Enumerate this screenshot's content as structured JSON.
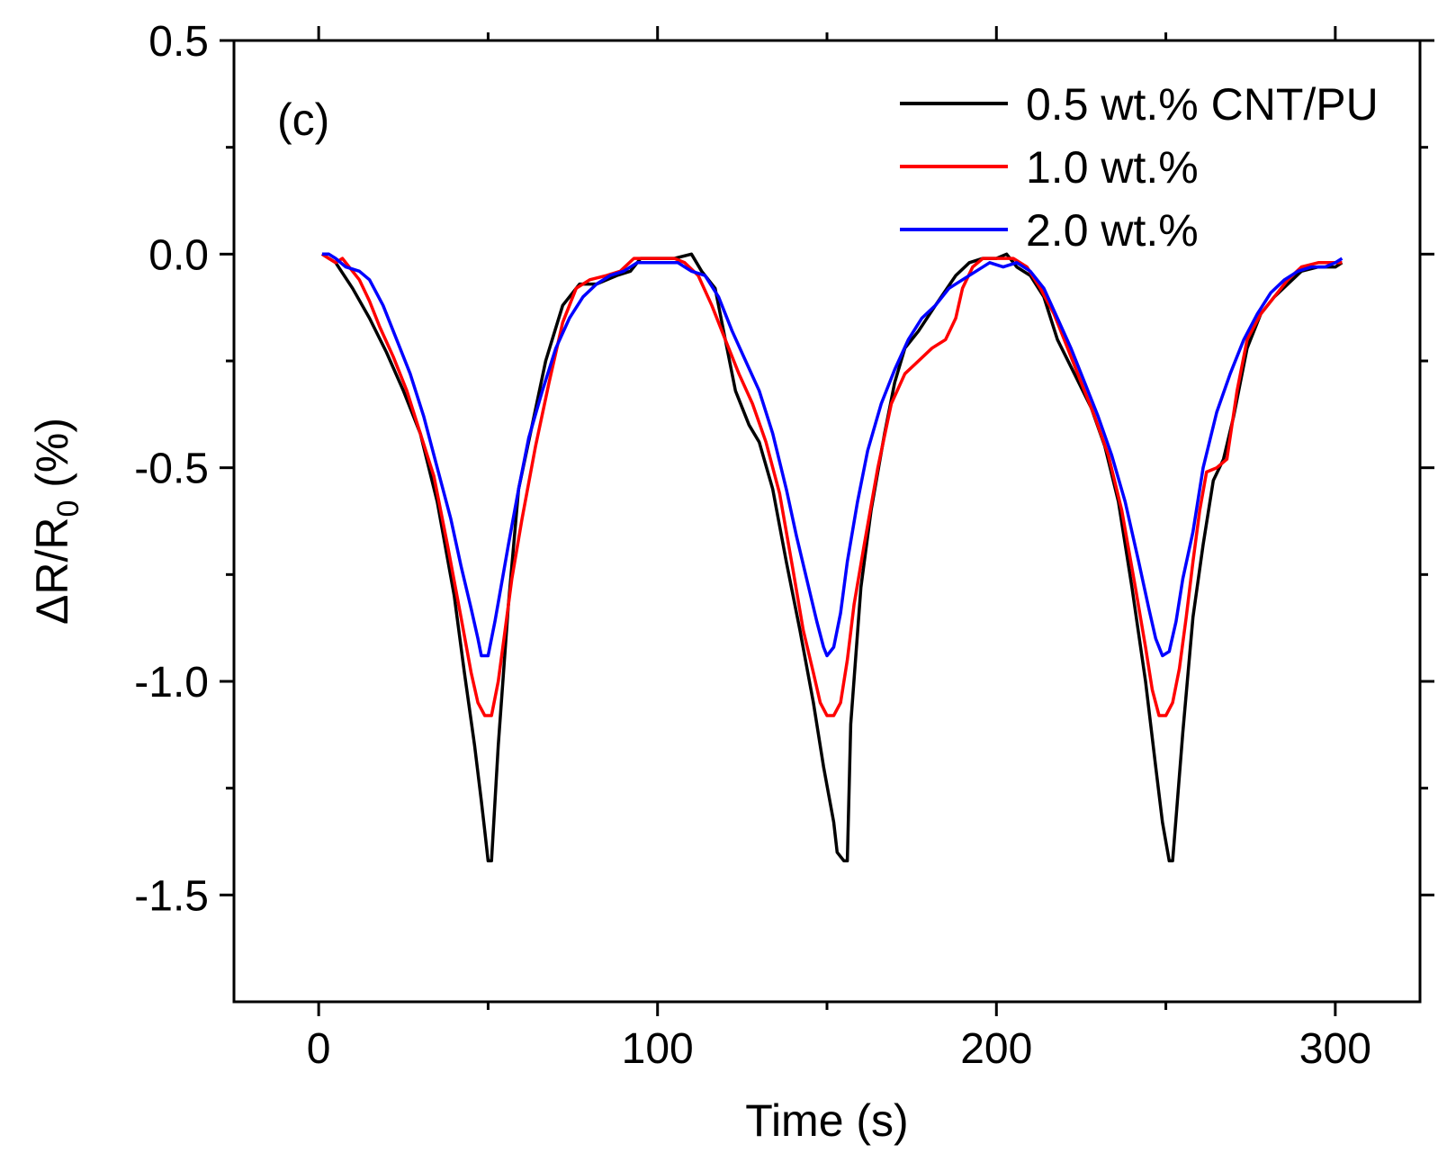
{
  "chart_data": {
    "type": "line",
    "panel_label": "(c)",
    "xlabel": "Time (s)",
    "ylabel_main": "ΔR/R",
    "ylabel_sub": "0",
    "ylabel_tail": " (%)",
    "xlim": [
      -25,
      325
    ],
    "ylim": [
      -1.75,
      0.5
    ],
    "xticks": [
      0,
      100,
      200,
      300
    ],
    "xtick_labels": [
      "0",
      "100",
      "200",
      "300"
    ],
    "yticks": [
      0.5,
      0.0,
      -0.5,
      -1.0,
      -1.5
    ],
    "ytick_labels": [
      "0.5",
      "0.0",
      "-0.5",
      "-1.0",
      "-1.5"
    ],
    "x_minor_ticks": [
      50,
      150,
      250
    ],
    "y_minor_ticks": [
      0.25,
      -0.25,
      -0.75,
      -1.25
    ],
    "grid": false,
    "legend_position": "top-right",
    "series": [
      {
        "name": "0.5 wt.% CNT/PU",
        "color": "#000000",
        "points": [
          [
            1,
            0
          ],
          [
            5,
            -0.02
          ],
          [
            10,
            -0.08
          ],
          [
            15,
            -0.15
          ],
          [
            20,
            -0.23
          ],
          [
            25,
            -0.32
          ],
          [
            30,
            -0.42
          ],
          [
            35,
            -0.58
          ],
          [
            40,
            -0.8
          ],
          [
            43,
            -0.98
          ],
          [
            46,
            -1.15
          ],
          [
            48,
            -1.28
          ],
          [
            49,
            -1.35
          ],
          [
            50,
            -1.42
          ],
          [
            51,
            -1.42
          ],
          [
            53,
            -1.15
          ],
          [
            56,
            -0.82
          ],
          [
            59,
            -0.55
          ],
          [
            63,
            -0.4
          ],
          [
            67,
            -0.25
          ],
          [
            72,
            -0.12
          ],
          [
            77,
            -0.07
          ],
          [
            82,
            -0.07
          ],
          [
            88,
            -0.05
          ],
          [
            92,
            -0.04
          ],
          [
            95,
            -0.01
          ],
          [
            100,
            -0.01
          ],
          [
            105,
            -0.01
          ],
          [
            110,
            0
          ],
          [
            113,
            -0.04
          ],
          [
            117,
            -0.08
          ],
          [
            120,
            -0.2
          ],
          [
            123,
            -0.32
          ],
          [
            127,
            -0.4
          ],
          [
            130,
            -0.44
          ],
          [
            134,
            -0.55
          ],
          [
            138,
            -0.72
          ],
          [
            142,
            -0.88
          ],
          [
            146,
            -1.05
          ],
          [
            149,
            -1.2
          ],
          [
            152,
            -1.33
          ],
          [
            153,
            -1.4
          ],
          [
            155,
            -1.42
          ],
          [
            156,
            -1.42
          ],
          [
            157,
            -1.1
          ],
          [
            160,
            -0.78
          ],
          [
            163,
            -0.6
          ],
          [
            167,
            -0.42
          ],
          [
            170,
            -0.3
          ],
          [
            173,
            -0.22
          ],
          [
            177,
            -0.18
          ],
          [
            182,
            -0.12
          ],
          [
            188,
            -0.05
          ],
          [
            192,
            -0.02
          ],
          [
            196,
            -0.01
          ],
          [
            200,
            -0.01
          ],
          [
            203,
            0
          ],
          [
            206,
            -0.03
          ],
          [
            210,
            -0.05
          ],
          [
            214,
            -0.1
          ],
          [
            218,
            -0.2
          ],
          [
            223,
            -0.28
          ],
          [
            228,
            -0.36
          ],
          [
            232,
            -0.45
          ],
          [
            236,
            -0.58
          ],
          [
            240,
            -0.78
          ],
          [
            244,
            -1.0
          ],
          [
            247,
            -1.2
          ],
          [
            249,
            -1.33
          ],
          [
            251,
            -1.42
          ],
          [
            252,
            -1.42
          ],
          [
            253,
            -1.32
          ],
          [
            255,
            -1.12
          ],
          [
            258,
            -0.85
          ],
          [
            261,
            -0.68
          ],
          [
            264,
            -0.53
          ],
          [
            267,
            -0.48
          ],
          [
            270,
            -0.38
          ],
          [
            274,
            -0.22
          ],
          [
            278,
            -0.14
          ],
          [
            282,
            -0.1
          ],
          [
            286,
            -0.07
          ],
          [
            290,
            -0.04
          ],
          [
            295,
            -0.03
          ],
          [
            300,
            -0.03
          ],
          [
            302,
            -0.02
          ]
        ]
      },
      {
        "name": "1.0 wt.%",
        "color": "#ff0000",
        "points": [
          [
            1,
            0
          ],
          [
            3,
            -0.01
          ],
          [
            5,
            -0.02
          ],
          [
            7,
            -0.01
          ],
          [
            9,
            -0.03
          ],
          [
            12,
            -0.06
          ],
          [
            15,
            -0.11
          ],
          [
            18,
            -0.17
          ],
          [
            22,
            -0.24
          ],
          [
            26,
            -0.32
          ],
          [
            30,
            -0.42
          ],
          [
            34,
            -0.52
          ],
          [
            38,
            -0.68
          ],
          [
            42,
            -0.85
          ],
          [
            45,
            -0.98
          ],
          [
            47,
            -1.05
          ],
          [
            49,
            -1.08
          ],
          [
            51,
            -1.08
          ],
          [
            53,
            -1.0
          ],
          [
            55,
            -0.88
          ],
          [
            57,
            -0.76
          ],
          [
            60,
            -0.62
          ],
          [
            64,
            -0.45
          ],
          [
            68,
            -0.3
          ],
          [
            72,
            -0.16
          ],
          [
            76,
            -0.08
          ],
          [
            80,
            -0.06
          ],
          [
            85,
            -0.05
          ],
          [
            89,
            -0.04
          ],
          [
            93,
            -0.01
          ],
          [
            100,
            -0.01
          ],
          [
            105,
            -0.01
          ],
          [
            108,
            -0.02
          ],
          [
            112,
            -0.05
          ],
          [
            116,
            -0.12
          ],
          [
            120,
            -0.2
          ],
          [
            124,
            -0.28
          ],
          [
            128,
            -0.35
          ],
          [
            132,
            -0.44
          ],
          [
            136,
            -0.56
          ],
          [
            140,
            -0.74
          ],
          [
            143,
            -0.88
          ],
          [
            146,
            -0.98
          ],
          [
            148,
            -1.05
          ],
          [
            150,
            -1.08
          ],
          [
            152,
            -1.08
          ],
          [
            154,
            -1.05
          ],
          [
            156,
            -0.95
          ],
          [
            158,
            -0.82
          ],
          [
            161,
            -0.68
          ],
          [
            165,
            -0.5
          ],
          [
            169,
            -0.35
          ],
          [
            173,
            -0.28
          ],
          [
            177,
            -0.25
          ],
          [
            181,
            -0.22
          ],
          [
            185,
            -0.2
          ],
          [
            188,
            -0.15
          ],
          [
            190,
            -0.08
          ],
          [
            193,
            -0.03
          ],
          [
            196,
            -0.01
          ],
          [
            200,
            -0.01
          ],
          [
            205,
            -0.01
          ],
          [
            209,
            -0.03
          ],
          [
            213,
            -0.08
          ],
          [
            217,
            -0.14
          ],
          [
            221,
            -0.22
          ],
          [
            225,
            -0.3
          ],
          [
            229,
            -0.38
          ],
          [
            233,
            -0.47
          ],
          [
            237,
            -0.6
          ],
          [
            241,
            -0.78
          ],
          [
            244,
            -0.92
          ],
          [
            246,
            -1.02
          ],
          [
            248,
            -1.08
          ],
          [
            250,
            -1.08
          ],
          [
            252,
            -1.05
          ],
          [
            254,
            -0.97
          ],
          [
            256,
            -0.85
          ],
          [
            258,
            -0.72
          ],
          [
            260,
            -0.6
          ],
          [
            262,
            -0.51
          ],
          [
            265,
            -0.5
          ],
          [
            268,
            -0.48
          ],
          [
            271,
            -0.32
          ],
          [
            274,
            -0.2
          ],
          [
            278,
            -0.14
          ],
          [
            282,
            -0.1
          ],
          [
            286,
            -0.06
          ],
          [
            290,
            -0.03
          ],
          [
            295,
            -0.02
          ],
          [
            300,
            -0.02
          ],
          [
            302,
            -0.02
          ]
        ]
      },
      {
        "name": "2.0 wt.%",
        "color": "#0000ff",
        "points": [
          [
            1,
            0
          ],
          [
            3,
            0
          ],
          [
            5,
            -0.01
          ],
          [
            8,
            -0.03
          ],
          [
            12,
            -0.04
          ],
          [
            15,
            -0.06
          ],
          [
            19,
            -0.12
          ],
          [
            23,
            -0.2
          ],
          [
            27,
            -0.28
          ],
          [
            31,
            -0.38
          ],
          [
            35,
            -0.5
          ],
          [
            39,
            -0.62
          ],
          [
            42,
            -0.73
          ],
          [
            45,
            -0.83
          ],
          [
            47,
            -0.9
          ],
          [
            48,
            -0.94
          ],
          [
            50,
            -0.94
          ],
          [
            52,
            -0.86
          ],
          [
            54,
            -0.77
          ],
          [
            56,
            -0.68
          ],
          [
            59,
            -0.55
          ],
          [
            62,
            -0.43
          ],
          [
            66,
            -0.32
          ],
          [
            70,
            -0.22
          ],
          [
            74,
            -0.15
          ],
          [
            78,
            -0.1
          ],
          [
            82,
            -0.07
          ],
          [
            86,
            -0.05
          ],
          [
            90,
            -0.04
          ],
          [
            94,
            -0.02
          ],
          [
            98,
            -0.02
          ],
          [
            102,
            -0.02
          ],
          [
            106,
            -0.02
          ],
          [
            110,
            -0.04
          ],
          [
            114,
            -0.05
          ],
          [
            118,
            -0.1
          ],
          [
            122,
            -0.18
          ],
          [
            126,
            -0.25
          ],
          [
            130,
            -0.32
          ],
          [
            134,
            -0.42
          ],
          [
            138,
            -0.55
          ],
          [
            141,
            -0.66
          ],
          [
            144,
            -0.76
          ],
          [
            147,
            -0.86
          ],
          [
            149,
            -0.92
          ],
          [
            150,
            -0.94
          ],
          [
            152,
            -0.92
          ],
          [
            154,
            -0.84
          ],
          [
            156,
            -0.72
          ],
          [
            159,
            -0.58
          ],
          [
            162,
            -0.46
          ],
          [
            166,
            -0.35
          ],
          [
            170,
            -0.27
          ],
          [
            174,
            -0.2
          ],
          [
            178,
            -0.15
          ],
          [
            182,
            -0.12
          ],
          [
            186,
            -0.08
          ],
          [
            190,
            -0.06
          ],
          [
            194,
            -0.04
          ],
          [
            198,
            -0.02
          ],
          [
            202,
            -0.03
          ],
          [
            206,
            -0.02
          ],
          [
            210,
            -0.04
          ],
          [
            214,
            -0.08
          ],
          [
            218,
            -0.15
          ],
          [
            222,
            -0.22
          ],
          [
            226,
            -0.3
          ],
          [
            230,
            -0.38
          ],
          [
            234,
            -0.47
          ],
          [
            238,
            -0.58
          ],
          [
            242,
            -0.72
          ],
          [
            245,
            -0.83
          ],
          [
            247,
            -0.9
          ],
          [
            249,
            -0.94
          ],
          [
            251,
            -0.93
          ],
          [
            253,
            -0.86
          ],
          [
            255,
            -0.76
          ],
          [
            258,
            -0.65
          ],
          [
            261,
            -0.5
          ],
          [
            265,
            -0.37
          ],
          [
            269,
            -0.28
          ],
          [
            273,
            -0.2
          ],
          [
            277,
            -0.14
          ],
          [
            281,
            -0.09
          ],
          [
            285,
            -0.06
          ],
          [
            289,
            -0.04
          ],
          [
            293,
            -0.03
          ],
          [
            297,
            -0.03
          ],
          [
            300,
            -0.02
          ],
          [
            302,
            -0.01
          ]
        ]
      }
    ]
  }
}
